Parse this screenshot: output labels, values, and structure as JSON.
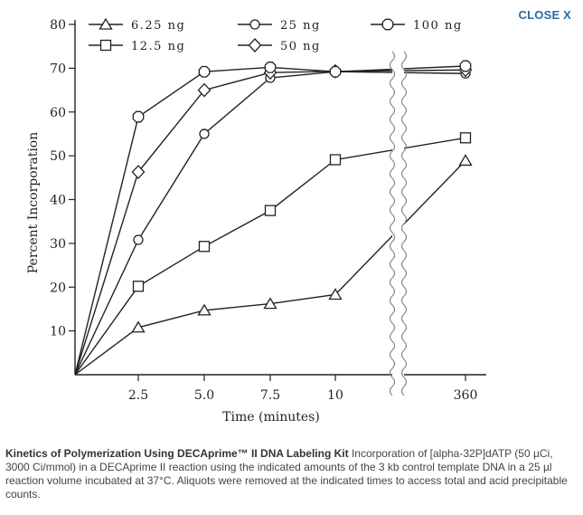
{
  "close_button": {
    "label": "CLOSE X"
  },
  "caption": {
    "title": "Kinetics of Polymerization Using DECAprime™ II DNA Labeling Kit",
    "body": " Incorporation of [alpha-32P]dATP (50 µCi, 3000 Ci/mmol) in a DECAprime II reaction using the indicated amounts of the 3 kb control template DNA in a 25 µl reaction volume incubated at 37°C. Aliquots were removed at the indicated times to access total and acid precipitable counts."
  },
  "chart_data": {
    "type": "line",
    "xlabel": "Time (minutes)",
    "ylabel": "Percent Incorporation",
    "x": [
      0,
      2.5,
      5.0,
      7.5,
      10,
      360
    ],
    "x_tick_labels": [
      "2.5",
      "5.0",
      "7.5",
      "10",
      "360"
    ],
    "x_axis_break": "between 10 and 360",
    "y_ticks": [
      10,
      20,
      30,
      40,
      50,
      60,
      70,
      80
    ],
    "ylim": [
      0,
      80
    ],
    "legend_position": "top",
    "series": [
      {
        "name": "6.25 ng",
        "marker": "triangle",
        "values": [
          0,
          10.8,
          14.7,
          16.2,
          18.3,
          48.9
        ]
      },
      {
        "name": "12.5 ng",
        "marker": "square",
        "values": [
          0,
          20.2,
          29.3,
          37.5,
          49.1,
          54.1
        ]
      },
      {
        "name": "25 ng",
        "marker": "circle",
        "values": [
          0,
          30.8,
          55,
          67.8,
          69.2,
          68.8
        ]
      },
      {
        "name": "50 ng",
        "marker": "diamond",
        "values": [
          0,
          46.3,
          65,
          69,
          69.3,
          69.6
        ]
      },
      {
        "name": "100 ng",
        "marker": "octagon",
        "values": [
          0,
          58.9,
          69.2,
          70.2,
          69.2,
          70.5
        ]
      }
    ]
  }
}
